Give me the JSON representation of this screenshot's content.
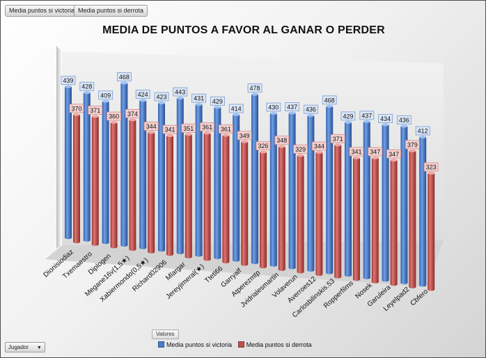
{
  "buttons": {
    "series_a": "Media puntos si victoria",
    "series_b": "Media puntos si derrota",
    "valores": "Valores",
    "jugador": "Jugador",
    "jugador_arrow": "▼"
  },
  "colors": {
    "blue": "#4a7ed0",
    "red": "#c0504d",
    "label_blue_bg": "#dbe6f6",
    "label_red_bg": "#f4d2d1"
  },
  "chart_data": {
    "type": "bar",
    "title": "MEDIA DE PUNTOS A FAVOR AL GANAR O PERDER",
    "categories": [
      "Dionisiodiaz",
      "Txemaestro",
      "Diplogen",
      "Megane16v(1,5★)",
      "Xabiermondo(0,5★)",
      "Richard02906",
      "Mlargar",
      "Jereyjimeral(★)",
      "Ttetl66",
      "Garryalf",
      "Atperezmtp",
      "Jvidrialesmartin",
      "Volaverun",
      "Averroes12",
      "Carlosbilinskis.53",
      "Ropperfilms",
      "Nosek",
      "Garuleira",
      "Leyelpad2",
      "Cbfero"
    ],
    "series": [
      {
        "name": "Media puntos si victoria",
        "color": "#4a7ed0",
        "values": [
          439,
          428,
          409,
          468,
          424,
          423,
          443,
          431,
          429,
          414,
          478,
          430,
          437,
          436,
          468,
          429,
          437,
          434,
          436,
          412
        ]
      },
      {
        "name": "Media puntos si derrota",
        "color": "#c0504d",
        "values": [
          370,
          371,
          360,
          374,
          344,
          341,
          351,
          361,
          361,
          349,
          326,
          348,
          329,
          344,
          371,
          341,
          347,
          347,
          379,
          323
        ]
      }
    ],
    "xlabel": "",
    "ylabel": "",
    "ylim": [
      0,
      480
    ],
    "legend": "bottom",
    "style": "3d-cylinder"
  }
}
